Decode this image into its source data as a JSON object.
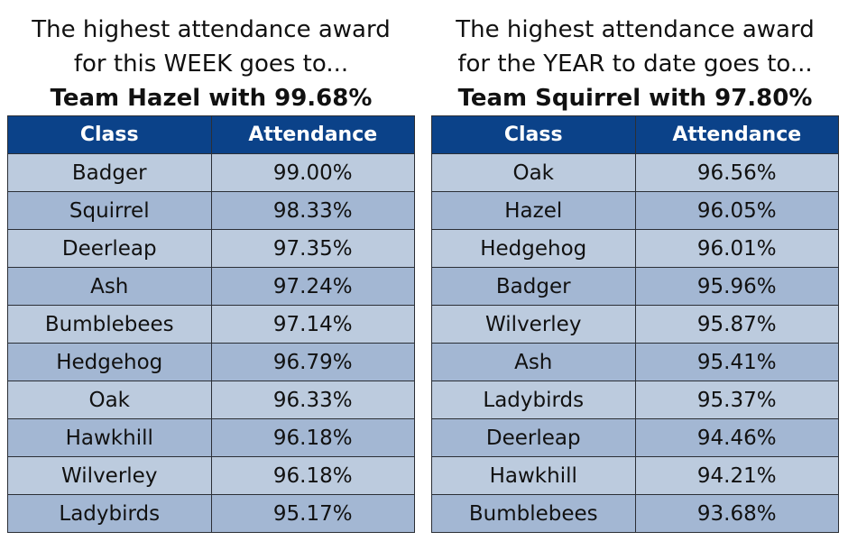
{
  "week": {
    "line1": "The highest attendance award",
    "line2": "for this WEEK goes to...",
    "winner": "Team Hazel with 99.68%",
    "headers": {
      "class": "Class",
      "attendance": "Attendance"
    },
    "rows": [
      {
        "class": "Badger",
        "attendance": "99.00%"
      },
      {
        "class": "Squirrel",
        "attendance": "98.33%"
      },
      {
        "class": "Deerleap",
        "attendance": "97.35%"
      },
      {
        "class": "Ash",
        "attendance": "97.24%"
      },
      {
        "class": "Bumblebees",
        "attendance": "97.14%"
      },
      {
        "class": "Hedgehog",
        "attendance": "96.79%"
      },
      {
        "class": "Oak",
        "attendance": "96.33%"
      },
      {
        "class": "Hawkhill",
        "attendance": "96.18%"
      },
      {
        "class": "Wilverley",
        "attendance": "96.18%"
      },
      {
        "class": "Ladybirds",
        "attendance": "95.17%"
      }
    ]
  },
  "year": {
    "line1": "The highest attendance award",
    "line2": "for the YEAR to date goes to...",
    "winner": "Team Squirrel with 97.80%",
    "headers": {
      "class": "Class",
      "attendance": "Attendance"
    },
    "rows": [
      {
        "class": "Oak",
        "attendance": "96.56%"
      },
      {
        "class": "Hazel",
        "attendance": "96.05%"
      },
      {
        "class": "Hedgehog",
        "attendance": "96.01%"
      },
      {
        "class": "Badger",
        "attendance": "95.96%"
      },
      {
        "class": "Wilverley",
        "attendance": "95.87%"
      },
      {
        "class": "Ash",
        "attendance": "95.41%"
      },
      {
        "class": "Ladybirds",
        "attendance": "95.37%"
      },
      {
        "class": "Deerleap",
        "attendance": "94.46%"
      },
      {
        "class": "Hawkhill",
        "attendance": "94.21%"
      },
      {
        "class": "Bumblebees",
        "attendance": "93.68%"
      }
    ]
  },
  "colors": {
    "header_bg": "#0b4289",
    "row_light": "#bccbde",
    "row_dark": "#a3b7d3",
    "border": "#2b2f36"
  }
}
